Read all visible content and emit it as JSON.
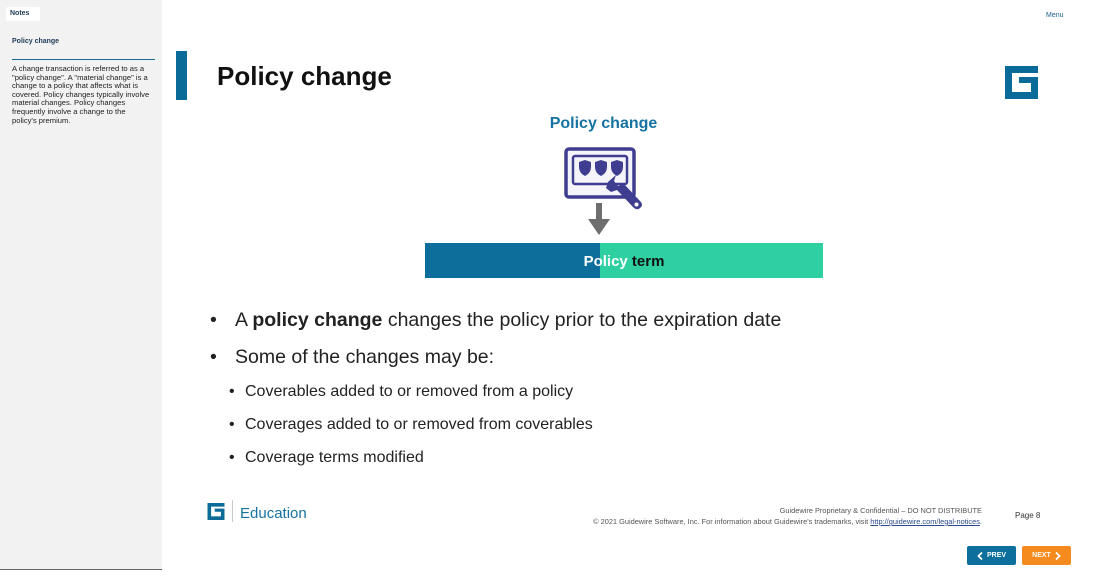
{
  "notes": {
    "tab_label": "Notes",
    "heading": "Policy change",
    "body": "A change transaction is referred to as a \"policy change\". A \"material change\" is a change to a policy that affects what is covered. Policy changes typically involve material changes. Policy changes frequently involve a change to the policy's premium."
  },
  "menu": {
    "label": "Menu"
  },
  "slide": {
    "title": "Policy change",
    "diagram": {
      "heading": "Policy change",
      "term_word1": "Policy",
      "term_word2": "term",
      "icon": "card-with-wrench-icon",
      "colors": {
        "term_left": "#0e6e9b",
        "term_right": "#2ecfa0",
        "icon": "#3f3d8f",
        "arrow": "#6e6e6e"
      }
    },
    "bullets": {
      "b1_prefix": "A ",
      "b1_bold": "policy change",
      "b1_suffix": " changes the policy prior to the expiration date",
      "b2": "Some of the changes may be:",
      "sub": [
        "Coverables added to or removed from a policy",
        "Coverages added to or removed from coverables",
        "Coverage terms modified"
      ]
    }
  },
  "footer": {
    "education_label": "Education",
    "line1": "Guidewire Proprietary & Confidential – DO NOT DISTRIBUTE",
    "line2_prefix": "© 2021 Guidewire Software, Inc. For information about Guidewire's trademarks, visit ",
    "link": "http://guidewire.com/legal-notices",
    "line2_suffix": ".",
    "page": "Page 8"
  },
  "nav": {
    "prev_label": "PREV",
    "next_label": "NEXT",
    "colors": {
      "prev": "#0d6f9b",
      "next": "#f58a1f"
    }
  },
  "brand": {
    "logo": "guidewire-logo-icon",
    "color": "#0b6b98"
  }
}
